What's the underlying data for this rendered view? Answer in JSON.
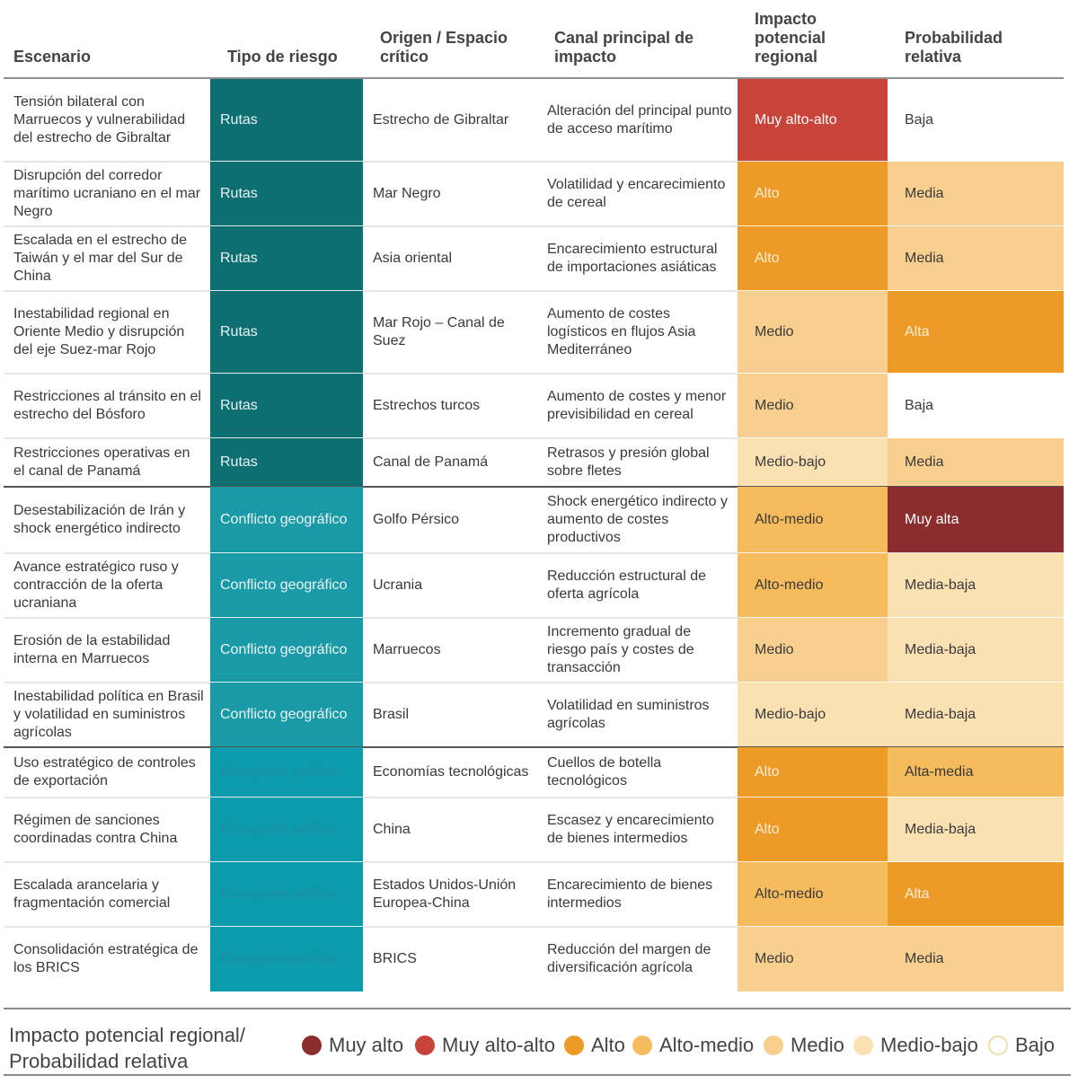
{
  "headers": {
    "escenario": "Escenario",
    "tipo": "Tipo de riesgo",
    "origen": "Origen / Espacio crítico",
    "canal": "Canal principal de impacto",
    "impacto": "Impacto potencial regional",
    "probabilidad": "Probabilidad relativa"
  },
  "colors": {
    "Muy alto": "#8b2c2f",
    "Muy alto-alto": "#c8443a",
    "Alto": "#ee9a27",
    "Alto-medio": "#f6bb5d",
    "Medio": "#f8cf8e",
    "Medio-bajo": "#fbe0b3",
    "Bajo": "#ffffff",
    "Rutas": "#0d6f72",
    "Conflicto geográfico": "#1a9aa6",
    "Disrupción política": "#0c9bab"
  },
  "rows": [
    {
      "escenario": "Tensión bilateral con Marruecos y vulnerabilidad del estrecho de Gibraltar",
      "tipo": "Rutas",
      "origen": "Estrecho de Gibraltar",
      "canal": "Alteración del principal punto de acceso marítimo",
      "impacto": "Muy alto-alto",
      "impacto_level": "Muy alto-alto",
      "probabilidad": "Baja",
      "probabilidad_level": "Bajo"
    },
    {
      "escenario": "Disrupción del corredor marítimo ucraniano en el mar Negro",
      "tipo": "Rutas",
      "origen": "Mar Negro",
      "canal": "Volatilidad y encarecimiento de cereal",
      "impacto": "Alto",
      "impacto_level": "Alto",
      "probabilidad": "Media",
      "probabilidad_level": "Medio"
    },
    {
      "escenario": "Escalada en el estrecho de Taiwán y el mar del Sur de China",
      "tipo": "Rutas",
      "origen": "Asia oriental",
      "canal": "Encarecimiento estructural de importaciones asiáticas",
      "impacto": "Alto",
      "impacto_level": "Alto",
      "probabilidad": "Media",
      "probabilidad_level": "Medio"
    },
    {
      "escenario": "Inestabilidad regional en Oriente Medio y disrupción del eje Suez-mar Rojo",
      "tipo": "Rutas",
      "origen": "Mar Rojo – Canal de Suez",
      "canal": "Aumento de costes logísticos en flujos Asia Mediterráneo",
      "impacto": "Medio",
      "impacto_level": "Medio",
      "probabilidad": "Alta",
      "probabilidad_level": "Alto"
    },
    {
      "escenario": "Restricciones al tránsito en el estrecho del Bósforo",
      "tipo": "Rutas",
      "origen": "Estrechos turcos",
      "canal": "Aumento de costes y menor previsibilidad en cereal",
      "impacto": "Medio",
      "impacto_level": "Medio",
      "probabilidad": "Baja",
      "probabilidad_level": "Bajo"
    },
    {
      "escenario": "Restricciones operativas en el canal de Panamá",
      "tipo": "Rutas",
      "origen": "Canal de Panamá",
      "canal": "Retrasos y presión global sobre fletes",
      "impacto": "Medio-bajo",
      "impacto_level": "Medio-bajo",
      "probabilidad": "Media",
      "probabilidad_level": "Medio"
    },
    {
      "escenario": "Desestabilización de Irán y shock energético indirecto",
      "tipo": "Conflicto geográfico",
      "origen": "Golfo Pérsico",
      "canal": "Shock energético indirecto y aumento de costes productivos",
      "impacto": "Alto-medio",
      "impacto_level": "Alto-medio",
      "probabilidad": "Muy alta",
      "probabilidad_level": "Muy alto"
    },
    {
      "escenario": "Avance estratégico ruso y contracción de la oferta ucraniana",
      "tipo": "Conflicto geográfico",
      "origen": "Ucrania",
      "canal": "Reducción estructural de oferta agrícola",
      "impacto": "Alto-medio",
      "impacto_level": "Alto-medio",
      "probabilidad": "Media-baja",
      "probabilidad_level": "Medio-bajo"
    },
    {
      "escenario": "Erosión de la estabilidad interna en Marruecos",
      "tipo": "Conflicto geográfico",
      "origen": "Marruecos",
      "canal": "Incremento gradual de riesgo país y costes de transacción",
      "impacto": "Medio",
      "impacto_level": "Medio",
      "probabilidad": "Media-baja",
      "probabilidad_level": "Medio-bajo"
    },
    {
      "escenario": "Inestabilidad política en Brasil y volatilidad en suministros agrícolas",
      "tipo": "Conflicto geográfico",
      "origen": "Brasil",
      "canal": "Volatilidad en suministros agrícolas",
      "impacto": "Medio-bajo",
      "impacto_level": "Medio-bajo",
      "probabilidad": "Media-baja",
      "probabilidad_level": "Medio-bajo"
    },
    {
      "escenario": "Uso estratégico de controles de exportación",
      "tipo": "Disrupción política",
      "origen": "Economías tecnológicas",
      "canal": "Cuellos de botella tecnológicos",
      "impacto": "Alto",
      "impacto_level": "Alto",
      "probabilidad": "Alta-media",
      "probabilidad_level": "Alto-medio"
    },
    {
      "escenario": "Régimen de sanciones coordinadas contra China",
      "tipo": "Disrupción política",
      "origen": "China",
      "canal": "Escasez y encarecimiento de bienes intermedios",
      "impacto": "Alto",
      "impacto_level": "Alto",
      "probabilidad": "Media-baja",
      "probabilidad_level": "Medio-bajo"
    },
    {
      "escenario": "Escalada arancelaria y fragmentación comercial",
      "tipo": "Disrupción política",
      "origen": "Estados Unidos-Unión Europea-China",
      "canal": "Encarecimiento de bienes intermedios",
      "impacto": "Alto-medio",
      "impacto_level": "Alto-medio",
      "probabilidad": "Alta",
      "probabilidad_level": "Alto"
    },
    {
      "escenario": "Consolidación estratégica de los BRICS",
      "tipo": "Disrupción política",
      "origen": "BRICS",
      "canal": "Reducción del margen de diversificación agrícola",
      "impacto": "Medio",
      "impacto_level": "Medio",
      "probabilidad": "Media",
      "probabilidad_level": "Medio"
    }
  ],
  "legend": {
    "title": "Impacto potencial regional/ Probabilidad relativa",
    "items": [
      "Muy alto",
      "Muy alto-alto",
      "Alto",
      "Alto-medio",
      "Medio",
      "Medio-bajo",
      "Bajo"
    ]
  }
}
